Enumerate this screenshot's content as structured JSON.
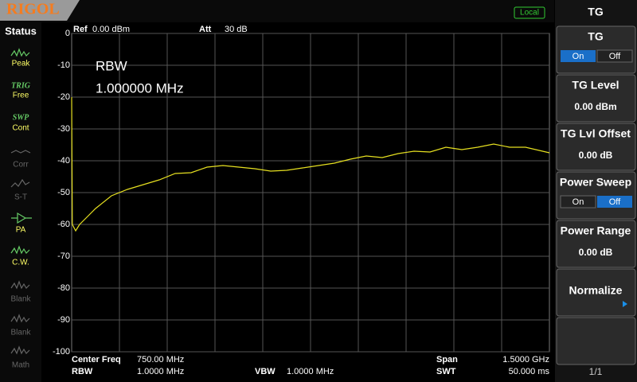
{
  "logo": "RIGOL",
  "remote": "Local",
  "sidebar": {
    "title": "Status",
    "items": [
      {
        "label": "Peak"
      },
      {
        "header": "TRIG",
        "label": "Free"
      },
      {
        "header": "SWP",
        "label": "Cont"
      },
      {
        "label": "Corr"
      },
      {
        "label": "S-T"
      },
      {
        "label": "PA"
      },
      {
        "label": "C.W."
      },
      {
        "label": "Blank"
      },
      {
        "label": "Blank"
      },
      {
        "label": "Math"
      }
    ]
  },
  "header": {
    "ref_label": "Ref",
    "ref_value": "0.00 dBm",
    "att_label": "Att",
    "att_value": "30 dB"
  },
  "footer": {
    "center_label": "Center Freq",
    "center_value": "750.00 MHz",
    "span_label": "Span",
    "span_value": "1.5000 GHz",
    "rbw_label": "RBW",
    "rbw_value": "1.0000 MHz",
    "vbw_label": "VBW",
    "vbw_value": "1.0000 MHz",
    "swt_label": "SWT",
    "swt_value": "50.000 ms"
  },
  "menu": {
    "title": "TG",
    "buttons": [
      {
        "label": "TG",
        "on": "On",
        "off": "Off"
      },
      {
        "label": "TG Level",
        "value": "0.00 dBm"
      },
      {
        "label": "TG Lvl Offset",
        "value": "0.00 dB"
      },
      {
        "label": "Power Sweep",
        "on": "On",
        "off": "Off"
      },
      {
        "label": "Power Range",
        "value": "0.00 dB"
      },
      {
        "label": "Normalize"
      }
    ],
    "page": "1/1"
  },
  "chart_data": {
    "type": "line",
    "annotations": [
      "RBW",
      "1.000000 MHz"
    ],
    "color": "#e6e020",
    "grid": true,
    "x": [
      0,
      2,
      12.5,
      25,
      50,
      75,
      125,
      175,
      225,
      275,
      325,
      375,
      425,
      475,
      525,
      575,
      625,
      675,
      725,
      775,
      825,
      875,
      925,
      975,
      1025,
      1075,
      1125,
      1175,
      1225,
      1275,
      1325,
      1375,
      1425,
      1500
    ],
    "values": [
      -20,
      -60,
      -62,
      -60,
      -57.5,
      -55,
      -51,
      -49,
      -47.5,
      -46,
      -44,
      -43.75,
      -42,
      -41.5,
      -42,
      -42.5,
      -43.25,
      -43,
      -42.25,
      -41.5,
      -40.75,
      -39.5,
      -38.5,
      -39,
      -37.75,
      -37,
      -37.25,
      -35.75,
      -36.5,
      -35.75,
      -34.75,
      -35.75,
      -35.75,
      -37.5
    ],
    "xlim": [
      0,
      1500
    ],
    "ylim": [
      -100,
      0
    ],
    "yticks": [
      0,
      -10,
      -20,
      -30,
      -40,
      -50,
      -60,
      -70,
      -80,
      -90,
      -100
    ]
  }
}
